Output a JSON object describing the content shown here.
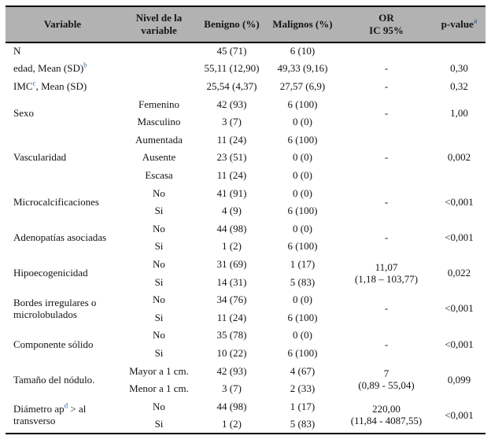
{
  "colors": {
    "header_bg": "#b2b2b2",
    "border": "#000000",
    "footnote_marker": "#3c65a8",
    "text": "#141414"
  },
  "table": {
    "header": {
      "columns": [
        {
          "parts": [
            {
              "t": "Variable"
            }
          ]
        },
        {
          "parts": [
            {
              "t": "Nivel de la\nvariable"
            }
          ]
        },
        {
          "parts": [
            {
              "t": "Benigno (%)"
            }
          ]
        },
        {
          "parts": [
            {
              "t": "Malignos (%)"
            }
          ]
        },
        {
          "parts": [
            {
              "t": "OR\nIC 95%"
            }
          ]
        },
        {
          "parts": [
            {
              "t": "p-value"
            },
            {
              "sup": "a"
            }
          ]
        }
      ]
    },
    "groups": [
      {
        "variable": [
          {
            "t": "N"
          }
        ],
        "rows": [
          {
            "nivel": "",
            "benigno": "45 (71)",
            "malignos": "6 (10)"
          }
        ],
        "or": "",
        "p": ""
      },
      {
        "variable": [
          {
            "t": "edad, Mean (SD)"
          },
          {
            "sup": "b"
          }
        ],
        "rows": [
          {
            "nivel": "",
            "benigno": "55,11 (12,90)",
            "malignos": "49,33 (9,16)"
          }
        ],
        "or": "-",
        "p": "0,30"
      },
      {
        "variable": [
          {
            "t": "IMC"
          },
          {
            "sup": "c"
          },
          {
            "t": ", Mean (SD)"
          }
        ],
        "rows": [
          {
            "nivel": "",
            "benigno": "25,54 (4,37)",
            "malignos": "27,57 (6,9)"
          }
        ],
        "or": "-",
        "p": "0,32"
      },
      {
        "variable": [
          {
            "t": "Sexo"
          }
        ],
        "rows": [
          {
            "nivel": "Femenino",
            "benigno": "42 (93)",
            "malignos": "6 (100)"
          },
          {
            "nivel": "Masculino",
            "benigno": "3 (7)",
            "malignos": "0 (0)"
          }
        ],
        "or": "-",
        "p": "1,00"
      },
      {
        "variable": [
          {
            "t": "Vascularidad"
          }
        ],
        "rows": [
          {
            "nivel": "Aumentada",
            "benigno": "11 (24)",
            "malignos": "6 (100)"
          },
          {
            "nivel": "Ausente",
            "benigno": "23 (51)",
            "malignos": "0 (0)"
          },
          {
            "nivel": "Escasa",
            "benigno": "11 (24)",
            "malignos": "0 (0)"
          }
        ],
        "or": "-",
        "p": "0,002"
      },
      {
        "variable": [
          {
            "t": "Microcalcificaciones"
          }
        ],
        "rows": [
          {
            "nivel": "No",
            "benigno": "41 (91)",
            "malignos": "0 (0)"
          },
          {
            "nivel": "Si",
            "benigno": "4 (9)",
            "malignos": "6 (100)"
          }
        ],
        "or": "-",
        "p": "<0,001"
      },
      {
        "variable": [
          {
            "t": "Adenopatías asociadas"
          }
        ],
        "rows": [
          {
            "nivel": "No",
            "benigno": "44 (98)",
            "malignos": "0 (0)"
          },
          {
            "nivel": "Si",
            "benigno": "1 (2)",
            "malignos": "6 (100)"
          }
        ],
        "or": "-",
        "p": "<0,001"
      },
      {
        "variable": [
          {
            "t": "Hipoecogenicidad"
          }
        ],
        "rows": [
          {
            "nivel": "No",
            "benigno": "31 (69)",
            "malignos": "1 (17)"
          },
          {
            "nivel": "Si",
            "benigno": "14 (31)",
            "malignos": "5 (83)"
          }
        ],
        "or": "11,07\n(1,18 – 103,77)",
        "p": "0,022"
      },
      {
        "variable": [
          {
            "t": "Bordes irregulares o microlobulados"
          }
        ],
        "rows": [
          {
            "nivel": "No",
            "benigno": "34 (76)",
            "malignos": "0 (0)"
          },
          {
            "nivel": "Si",
            "benigno": "11 (24)",
            "malignos": "6 (100)"
          }
        ],
        "or": "-",
        "p": "<0,001"
      },
      {
        "variable": [
          {
            "t": "Componente sólido"
          }
        ],
        "rows": [
          {
            "nivel": "No",
            "benigno": "35 (78)",
            "malignos": "0 (0)"
          },
          {
            "nivel": "Si",
            "benigno": "10 (22)",
            "malignos": "6 (100)"
          }
        ],
        "or": "-",
        "p": "<0,001"
      },
      {
        "variable": [
          {
            "t": "Tamaño del nódulo."
          }
        ],
        "rows": [
          {
            "nivel": "Mayor a 1 cm.",
            "benigno": "42 (93)",
            "malignos": "4 (67)"
          },
          {
            "nivel": "Menor a 1 cm.",
            "benigno": "3 (7)",
            "malignos": "2 (33)"
          }
        ],
        "or": "7\n(0,89 - 55,04)",
        "p": "0,099"
      },
      {
        "variable": [
          {
            "t": "Diámetro ap"
          },
          {
            "sup": "d"
          },
          {
            "t": " > al transverso"
          }
        ],
        "rows": [
          {
            "nivel": "No",
            "benigno": "44 (98)",
            "malignos": "1 (17)"
          },
          {
            "nivel": "Si",
            "benigno": "1 (2)",
            "malignos": "5 (83)"
          }
        ],
        "or": "220,00\n(11,84 - 4087,55)",
        "p": "<0,001"
      }
    ]
  }
}
